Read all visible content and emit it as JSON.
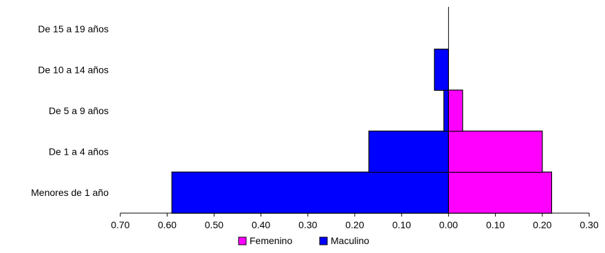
{
  "chart_data": {
    "type": "bar",
    "orientation": "horizontal",
    "categories": [
      "Menores de 1 año",
      "De 1 a 4 años",
      "De 5 a 9 años",
      "De 10 a 14 años",
      "De 15 a 19 años"
    ],
    "series": [
      {
        "name": "Femenino",
        "color": "#ff00ff",
        "values": [
          0.22,
          0.2,
          0.03,
          0.0,
          0.0
        ]
      },
      {
        "name": "Maculino",
        "color": "#0000ff",
        "values": [
          -0.59,
          -0.17,
          -0.01,
          -0.03,
          0.0
        ]
      }
    ],
    "x_ticks": [
      {
        "value": -0.7,
        "label": "0.70"
      },
      {
        "value": -0.6,
        "label": "0.60"
      },
      {
        "value": -0.5,
        "label": "0.50"
      },
      {
        "value": -0.4,
        "label": "0.40"
      },
      {
        "value": -0.3,
        "label": "0.30"
      },
      {
        "value": -0.2,
        "label": "0.20"
      },
      {
        "value": -0.1,
        "label": "0.10"
      },
      {
        "value": 0.0,
        "label": "0.00"
      },
      {
        "value": 0.1,
        "label": "0.10"
      },
      {
        "value": 0.2,
        "label": "0.20"
      },
      {
        "value": 0.3,
        "label": "0.30"
      }
    ],
    "xlim": [
      -0.7,
      0.3
    ],
    "title": "",
    "xlabel": "",
    "ylabel": "",
    "grid": false,
    "legend_position": "bottom-center"
  }
}
